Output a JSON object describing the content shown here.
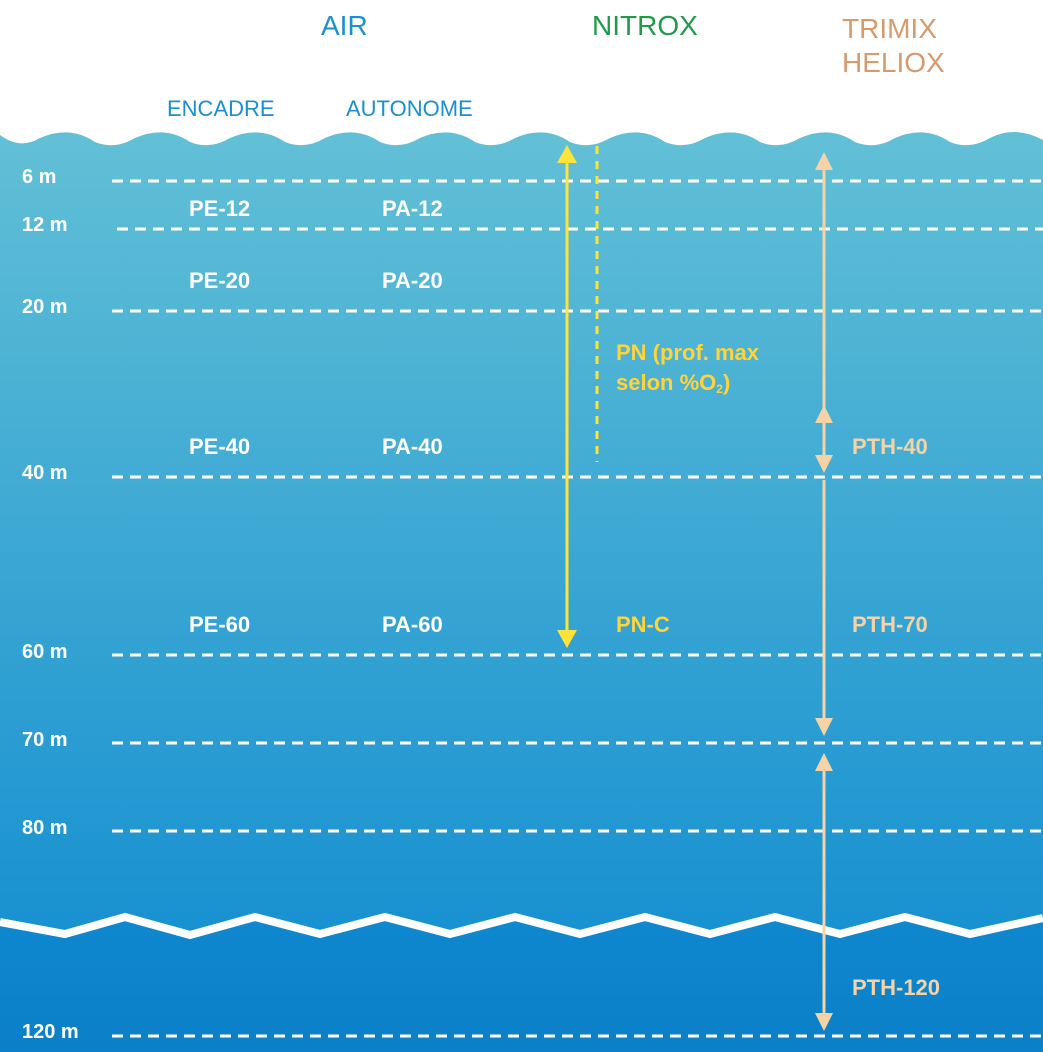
{
  "headers": {
    "air": "AIR",
    "nitrox": "NITROX",
    "trimix": "TRIMIX",
    "heliox": "HELIOX",
    "encadre": "ENCADRE",
    "autonome": "AUTONOME"
  },
  "depths": {
    "d6": "6 m",
    "d12": "12 m",
    "d20": "20 m",
    "d40": "40 m",
    "d60": "60 m",
    "d70": "70 m",
    "d80": "80 m",
    "d120": "120 m"
  },
  "levels": {
    "pe12": "PE-12",
    "pa12": "PA-12",
    "pe20": "PE-20",
    "pa20": "PA-20",
    "pe40": "PE-40",
    "pa40": "PA-40",
    "pe60": "PE-60",
    "pa60": "PA-60"
  },
  "nitrox": {
    "pn_line1": "PN (prof. max",
    "pn_line2_a": "selon %O",
    "pn_sub": "2",
    "pn_line2_b": ")",
    "pnc": "PN-C"
  },
  "trimix": {
    "pth40": "PTH-40",
    "pth70": "PTH-70",
    "pth120": "PTH-120"
  },
  "colors": {
    "water_top": "#62c0d6",
    "water_bottom": "#0d8ad0",
    "deep_top": "#0f88cf",
    "deep_bottom": "#0b7fc7",
    "nitrox_arrow": "#ffe33a",
    "trimix_arrow": "#f5d3a6"
  }
}
